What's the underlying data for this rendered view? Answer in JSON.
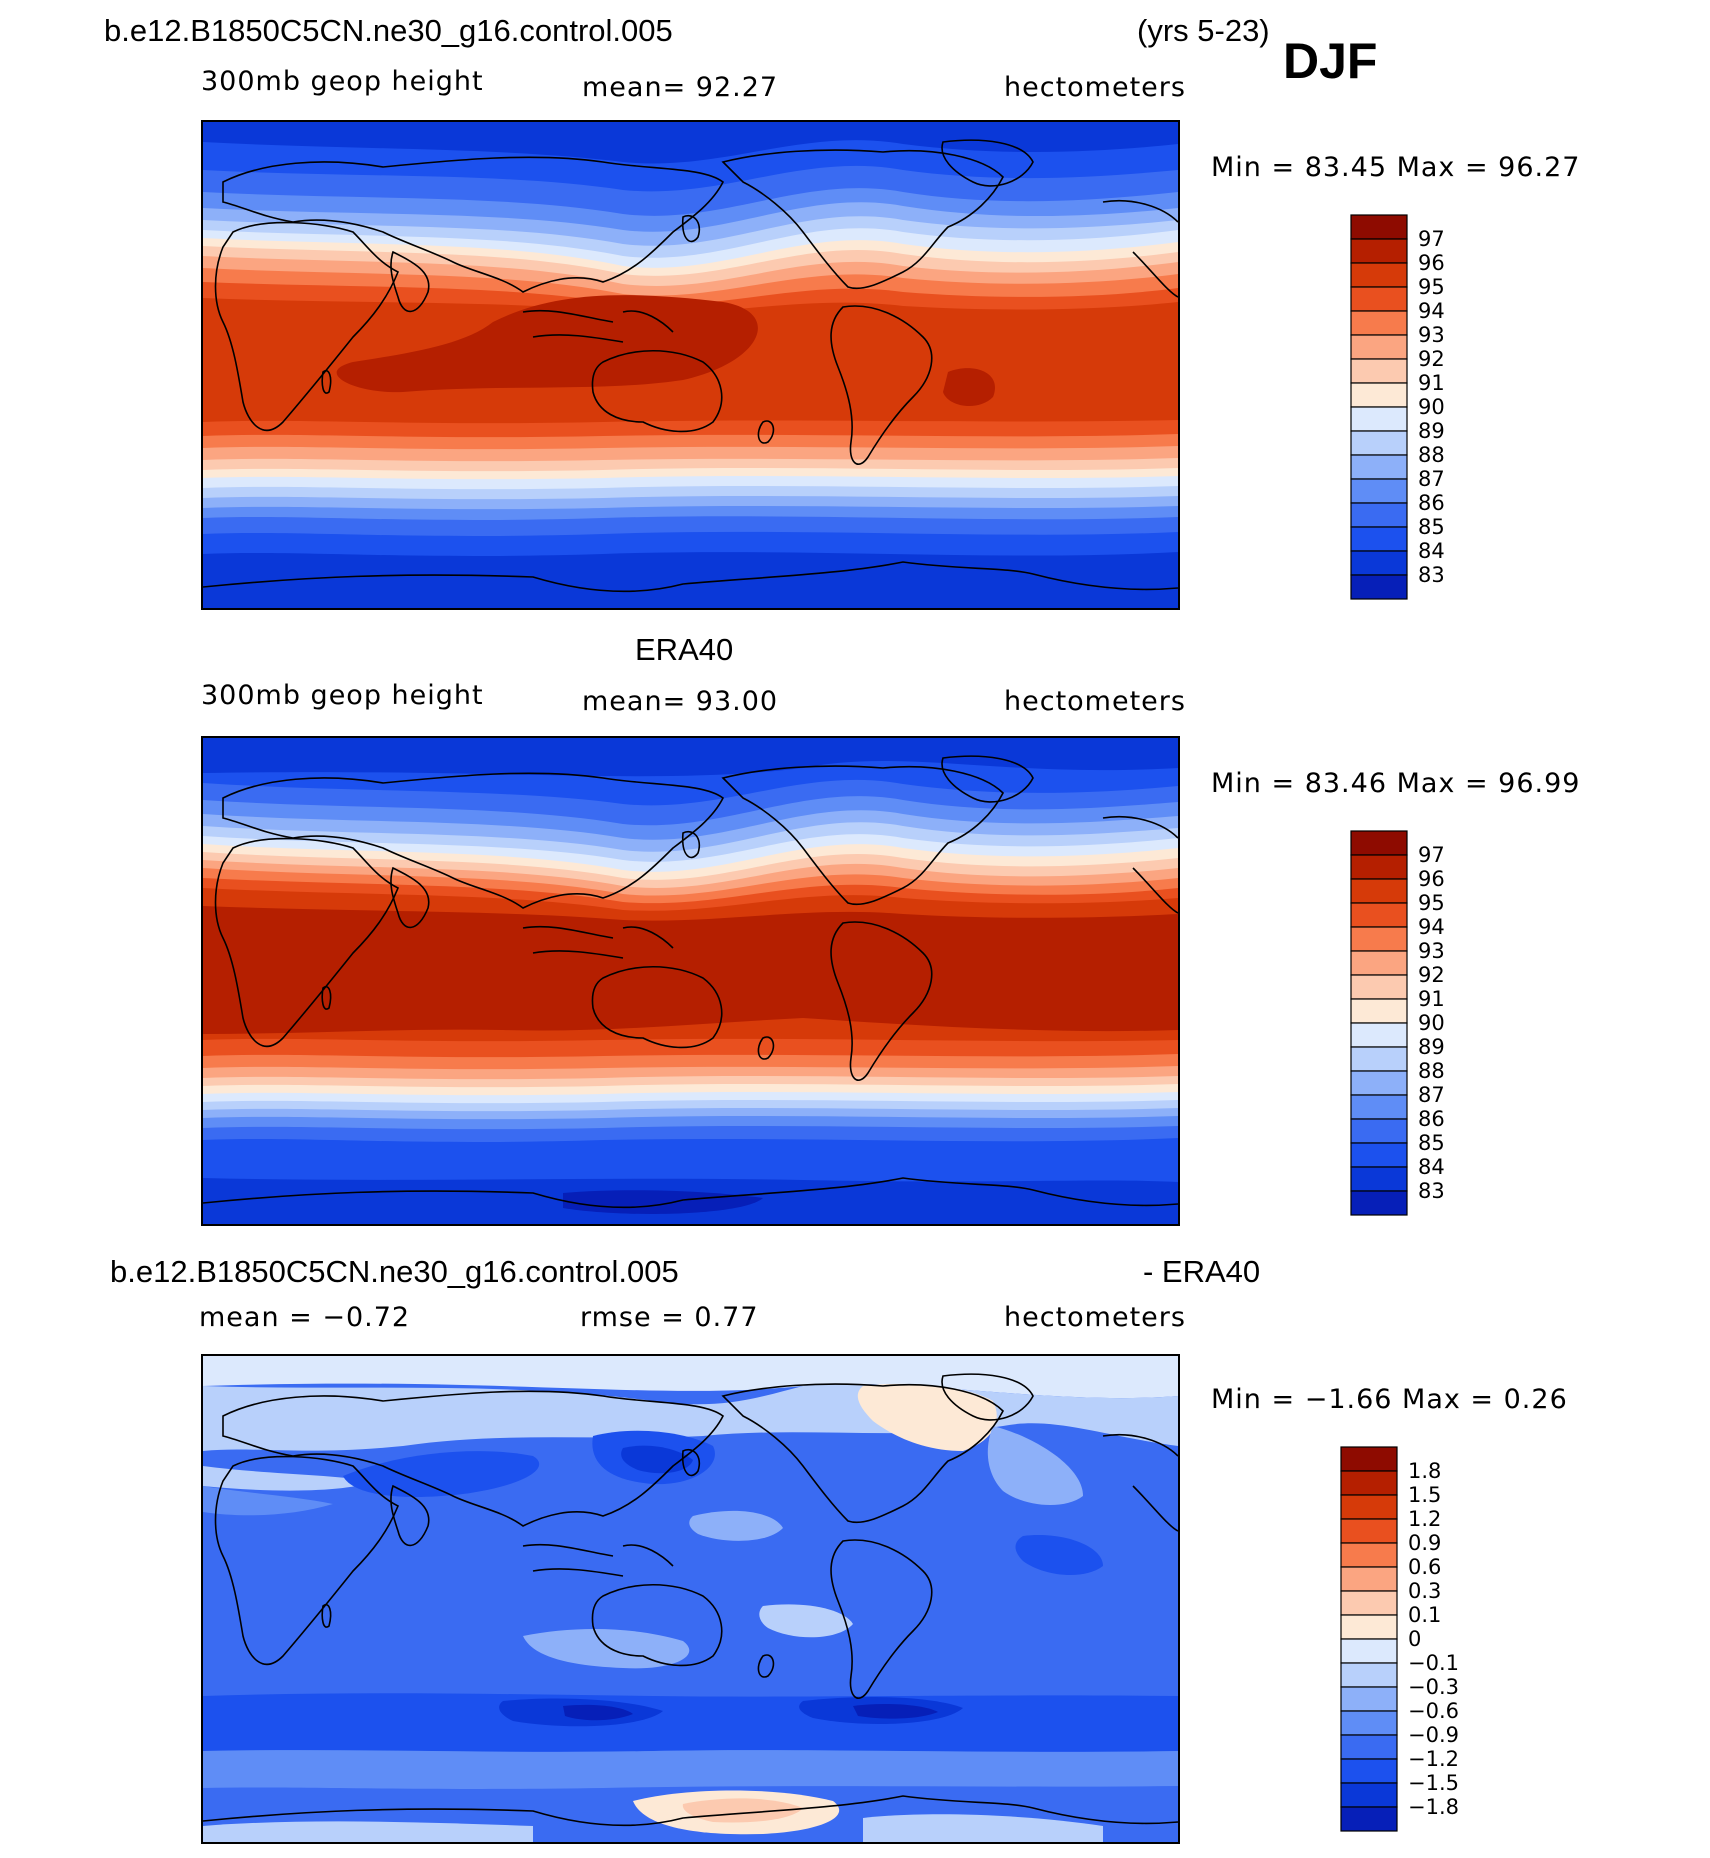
{
  "header": {
    "case_name": "b.e12.B1850C5CN.ne30_g16.control.005",
    "years": "(yrs 5-23)",
    "season": "DJF"
  },
  "colors": {
    "warm": [
      "#fde9d6",
      "#fccab0",
      "#fba581",
      "#f77b4c",
      "#e9501f",
      "#d63a09",
      "#b51f00",
      "#8e0b00"
    ],
    "cool": [
      "#0a0f8a",
      "#061fb8",
      "#0a38d8",
      "#1c51ee",
      "#3a6bf2",
      "#5f8df6",
      "#8db0f9",
      "#b8d0fb",
      "#dce9fd"
    ],
    "coastline": "#000000"
  },
  "chart_data": [
    {
      "type": "heatmap",
      "name": "model",
      "title": "",
      "field_label": "300mb  geop  height",
      "mean_label": "mean=   92.27",
      "units": "hectometers",
      "min_max_label": "Min  =    83.45  Max  =    96.27",
      "min": 83.45,
      "max": 96.27,
      "mean": 92.27,
      "colorbar_labels": [
        "97",
        "96",
        "95",
        "94",
        "93",
        "92",
        "91",
        "90",
        "89",
        "88",
        "87",
        "86",
        "85",
        "84",
        "83"
      ]
    },
    {
      "type": "heatmap",
      "name": "era40",
      "title": "ERA40",
      "field_label": "300mb  geop  height",
      "mean_label": "mean=   93.00",
      "units": "hectometers",
      "min_max_label": "Min  =    83.46  Max  =    96.99",
      "min": 83.46,
      "max": 96.99,
      "mean": 93.0,
      "colorbar_labels": [
        "97",
        "96",
        "95",
        "94",
        "93",
        "92",
        "91",
        "90",
        "89",
        "88",
        "87",
        "86",
        "85",
        "84",
        "83"
      ]
    },
    {
      "type": "heatmap",
      "name": "difference",
      "title": "b.e12.B1850C5CN.ne30_g16.control.005",
      "title_right": "- ERA40",
      "mean_label": "mean  =   −0.72",
      "rmse_label": "rmse  =     0.77",
      "units": "hectometers",
      "min_max_label": "Min  =   −1.66  Max  =     0.26",
      "min": -1.66,
      "max": 0.26,
      "mean": -0.72,
      "rmse": 0.77,
      "colorbar_labels": [
        "1.8",
        "1.5",
        "1.2",
        "0.9",
        "0.6",
        "0.3",
        "0.1",
        "0",
        "−0.1",
        "−0.3",
        "−0.6",
        "−0.9",
        "−1.2",
        "−1.5",
        "−1.8"
      ]
    }
  ]
}
